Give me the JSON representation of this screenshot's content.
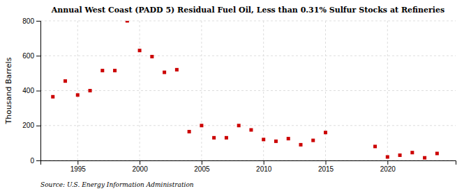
{
  "chart_data": {
    "type": "scatter",
    "title": "Annual West Coast (PADD 5) Residual Fuel Oil, Less than 0.31% Sulfur Stocks at Refineries",
    "ylabel": "Thousand Barrels",
    "annotations": [
      "Source: U.S. Energy Information Administration"
    ],
    "x": [
      1993,
      1994,
      1995,
      1996,
      1997,
      1998,
      1999,
      2000,
      2001,
      2002,
      2003,
      2004,
      2005,
      2006,
      2007,
      2008,
      2009,
      2010,
      2011,
      2012,
      2013,
      2014,
      2015,
      2019,
      2020,
      2021,
      2022,
      2023,
      2024
    ],
    "values": [
      365,
      455,
      375,
      400,
      515,
      515,
      800,
      630,
      595,
      505,
      520,
      165,
      200,
      130,
      130,
      200,
      175,
      120,
      110,
      125,
      90,
      115,
      160,
      80,
      20,
      30,
      45,
      15,
      40
    ],
    "color": "#cc0000",
    "marker": "square",
    "xlim": [
      1992,
      2025.5
    ],
    "xticks": [
      1995,
      2000,
      2005,
      2010,
      2015,
      2020
    ],
    "ylim": [
      0,
      800
    ],
    "yticks": [
      0,
      200,
      400,
      600,
      800
    ],
    "grid": true
  }
}
